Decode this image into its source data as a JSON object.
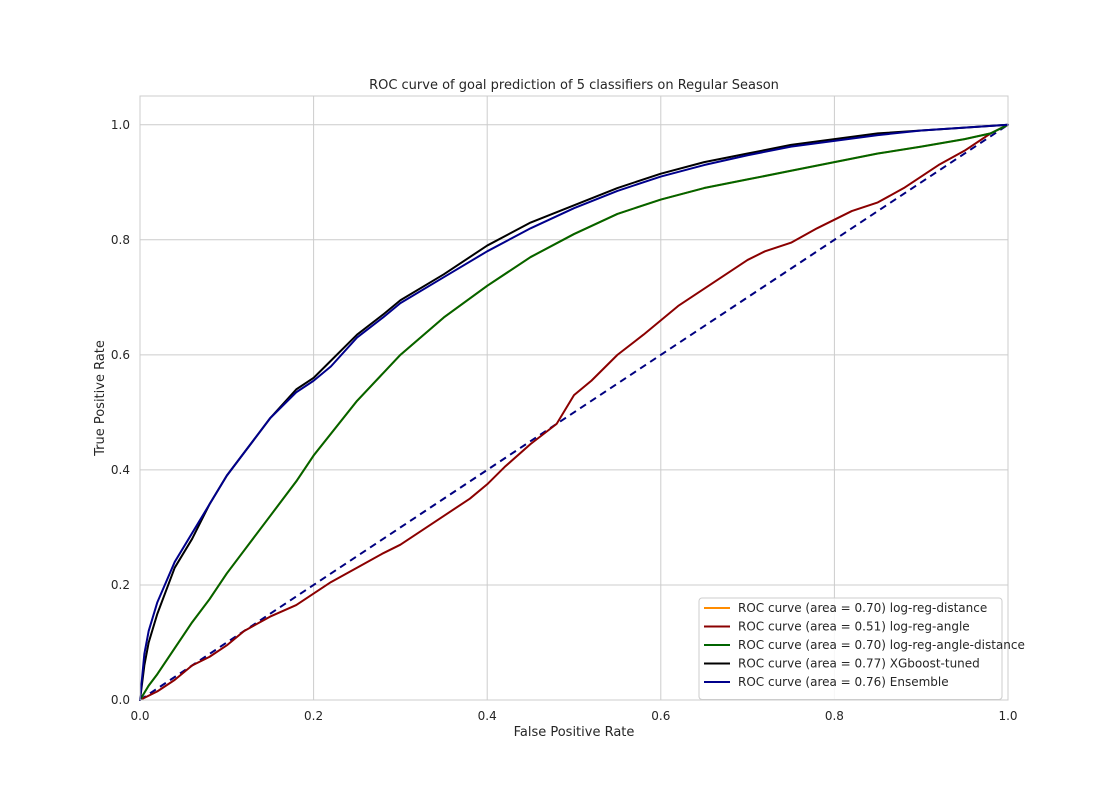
{
  "chart_data": {
    "type": "line",
    "title": "ROC curve of goal prediction of 5 classifiers on Regular Season",
    "xlabel": "False Positive Rate",
    "ylabel": "True Positive Rate",
    "xlim": [
      0.0,
      1.0
    ],
    "ylim": [
      0.0,
      1.05
    ],
    "x_ticks": [
      "0.0",
      "0.2",
      "0.4",
      "0.6",
      "0.8",
      "1.0"
    ],
    "y_ticks": [
      "0.0",
      "0.2",
      "0.4",
      "0.6",
      "0.8",
      "1.0"
    ],
    "grid": true,
    "legend_position": "lower-right",
    "diagonal": {
      "x": [
        0.0,
        1.0
      ],
      "y": [
        0.0,
        1.0
      ],
      "color": "#000080",
      "style": "dashed"
    },
    "series": [
      {
        "name": "ROC curve (area = 0.70) log-reg-distance",
        "color": "#ff8c00",
        "x": [
          0.0,
          0.01,
          0.02,
          0.04,
          0.06,
          0.08,
          0.1,
          0.12,
          0.15,
          0.18,
          0.2,
          0.25,
          0.3,
          0.35,
          0.4,
          0.45,
          0.5,
          0.55,
          0.6,
          0.65,
          0.7,
          0.75,
          0.8,
          0.85,
          0.9,
          0.95,
          0.98,
          1.0
        ],
        "y": [
          0.0,
          0.025,
          0.045,
          0.09,
          0.135,
          0.175,
          0.22,
          0.26,
          0.32,
          0.38,
          0.425,
          0.52,
          0.6,
          0.665,
          0.72,
          0.77,
          0.81,
          0.845,
          0.87,
          0.89,
          0.905,
          0.92,
          0.935,
          0.95,
          0.962,
          0.975,
          0.985,
          1.0
        ]
      },
      {
        "name": "ROC curve (area = 0.51) log-reg-angle",
        "color": "#8b0000",
        "x": [
          0.0,
          0.02,
          0.04,
          0.06,
          0.08,
          0.1,
          0.12,
          0.15,
          0.18,
          0.2,
          0.22,
          0.25,
          0.28,
          0.3,
          0.32,
          0.35,
          0.38,
          0.4,
          0.42,
          0.45,
          0.48,
          0.5,
          0.52,
          0.55,
          0.58,
          0.6,
          0.62,
          0.65,
          0.68,
          0.7,
          0.72,
          0.75,
          0.78,
          0.8,
          0.82,
          0.85,
          0.88,
          0.9,
          0.92,
          0.95,
          0.98,
          1.0
        ],
        "y": [
          0.0,
          0.015,
          0.035,
          0.06,
          0.075,
          0.095,
          0.12,
          0.145,
          0.165,
          0.185,
          0.205,
          0.23,
          0.255,
          0.27,
          0.29,
          0.32,
          0.35,
          0.375,
          0.405,
          0.445,
          0.48,
          0.53,
          0.555,
          0.6,
          0.635,
          0.66,
          0.685,
          0.715,
          0.745,
          0.765,
          0.78,
          0.795,
          0.82,
          0.835,
          0.85,
          0.865,
          0.89,
          0.91,
          0.93,
          0.955,
          0.985,
          1.0
        ]
      },
      {
        "name": "ROC curve (area = 0.70) log-reg-angle-distance",
        "color": "#006400",
        "x": [
          0.0,
          0.01,
          0.02,
          0.04,
          0.06,
          0.08,
          0.1,
          0.12,
          0.15,
          0.18,
          0.2,
          0.25,
          0.3,
          0.35,
          0.4,
          0.45,
          0.5,
          0.55,
          0.6,
          0.65,
          0.7,
          0.75,
          0.8,
          0.85,
          0.9,
          0.95,
          0.98,
          1.0
        ],
        "y": [
          0.0,
          0.025,
          0.045,
          0.09,
          0.135,
          0.175,
          0.22,
          0.26,
          0.32,
          0.38,
          0.425,
          0.52,
          0.6,
          0.665,
          0.72,
          0.77,
          0.81,
          0.845,
          0.87,
          0.89,
          0.905,
          0.92,
          0.935,
          0.95,
          0.962,
          0.975,
          0.985,
          1.0
        ]
      },
      {
        "name": "ROC curve (area = 0.77) XGboost-tuned",
        "color": "#000000",
        "x": [
          0.0,
          0.005,
          0.01,
          0.02,
          0.04,
          0.06,
          0.08,
          0.1,
          0.12,
          0.15,
          0.18,
          0.2,
          0.22,
          0.25,
          0.28,
          0.3,
          0.35,
          0.4,
          0.45,
          0.5,
          0.55,
          0.6,
          0.65,
          0.7,
          0.75,
          0.8,
          0.85,
          0.9,
          0.95,
          1.0
        ],
        "y": [
          0.0,
          0.06,
          0.1,
          0.15,
          0.23,
          0.28,
          0.34,
          0.39,
          0.43,
          0.49,
          0.54,
          0.56,
          0.59,
          0.635,
          0.67,
          0.695,
          0.74,
          0.79,
          0.83,
          0.86,
          0.89,
          0.915,
          0.935,
          0.95,
          0.965,
          0.975,
          0.985,
          0.99,
          0.995,
          1.0
        ]
      },
      {
        "name": "ROC curve (area = 0.76) Ensemble",
        "color": "#00008b",
        "x": [
          0.0,
          0.005,
          0.01,
          0.02,
          0.04,
          0.06,
          0.08,
          0.1,
          0.12,
          0.15,
          0.18,
          0.2,
          0.22,
          0.25,
          0.28,
          0.3,
          0.35,
          0.4,
          0.45,
          0.5,
          0.55,
          0.6,
          0.65,
          0.7,
          0.75,
          0.8,
          0.85,
          0.9,
          0.95,
          1.0
        ],
        "y": [
          0.0,
          0.08,
          0.12,
          0.17,
          0.24,
          0.29,
          0.34,
          0.39,
          0.43,
          0.49,
          0.535,
          0.555,
          0.58,
          0.63,
          0.665,
          0.69,
          0.735,
          0.78,
          0.82,
          0.855,
          0.885,
          0.91,
          0.93,
          0.947,
          0.962,
          0.972,
          0.982,
          0.99,
          0.995,
          1.0
        ]
      }
    ]
  }
}
